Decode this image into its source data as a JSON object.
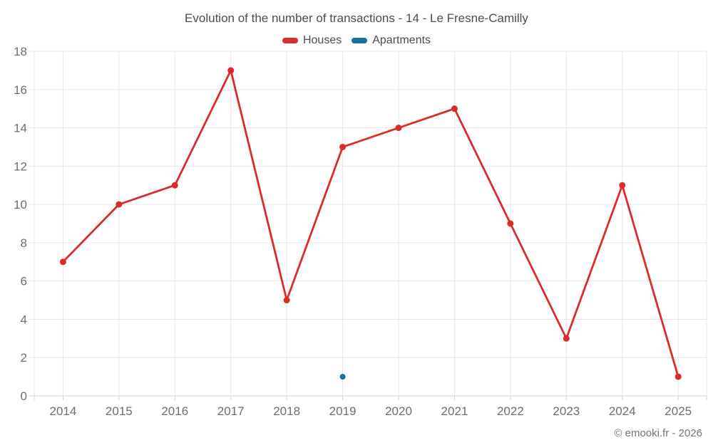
{
  "title": "Evolution of the number of transactions - 14 - Le Fresne-Camilly",
  "footer": {
    "copyright": "© emooki.fr - 2026"
  },
  "chart_data": {
    "type": "line",
    "title": "Evolution of the number of transactions - 14 - Le Fresne-Camilly",
    "x": [
      2014,
      2015,
      2016,
      2017,
      2018,
      2019,
      2020,
      2021,
      2022,
      2023,
      2024,
      2025
    ],
    "series": [
      {
        "name": "Houses",
        "color": "#da2c2a",
        "marker_radius": 4.5,
        "values": [
          7,
          10,
          11,
          17,
          5,
          13,
          14,
          15,
          9,
          3,
          11,
          1
        ]
      },
      {
        "name": "Apartments",
        "color": "#186f9b",
        "marker_radius": 4,
        "values": [
          null,
          null,
          null,
          null,
          null,
          1,
          null,
          null,
          null,
          null,
          null,
          null
        ]
      }
    ],
    "xlabel": "",
    "ylabel": "",
    "ylim": [
      0,
      18
    ],
    "y_tick_step": 2,
    "y_tick_labels": [
      "0",
      "2",
      "4",
      "6",
      "8",
      "10",
      "12",
      "14",
      "16",
      "18"
    ],
    "grid": true,
    "legend_position": "top",
    "grid_color": "#e7e7e7",
    "axis_line_color": "#d2d2d2",
    "tick_label_color": "#6e6e6e"
  }
}
